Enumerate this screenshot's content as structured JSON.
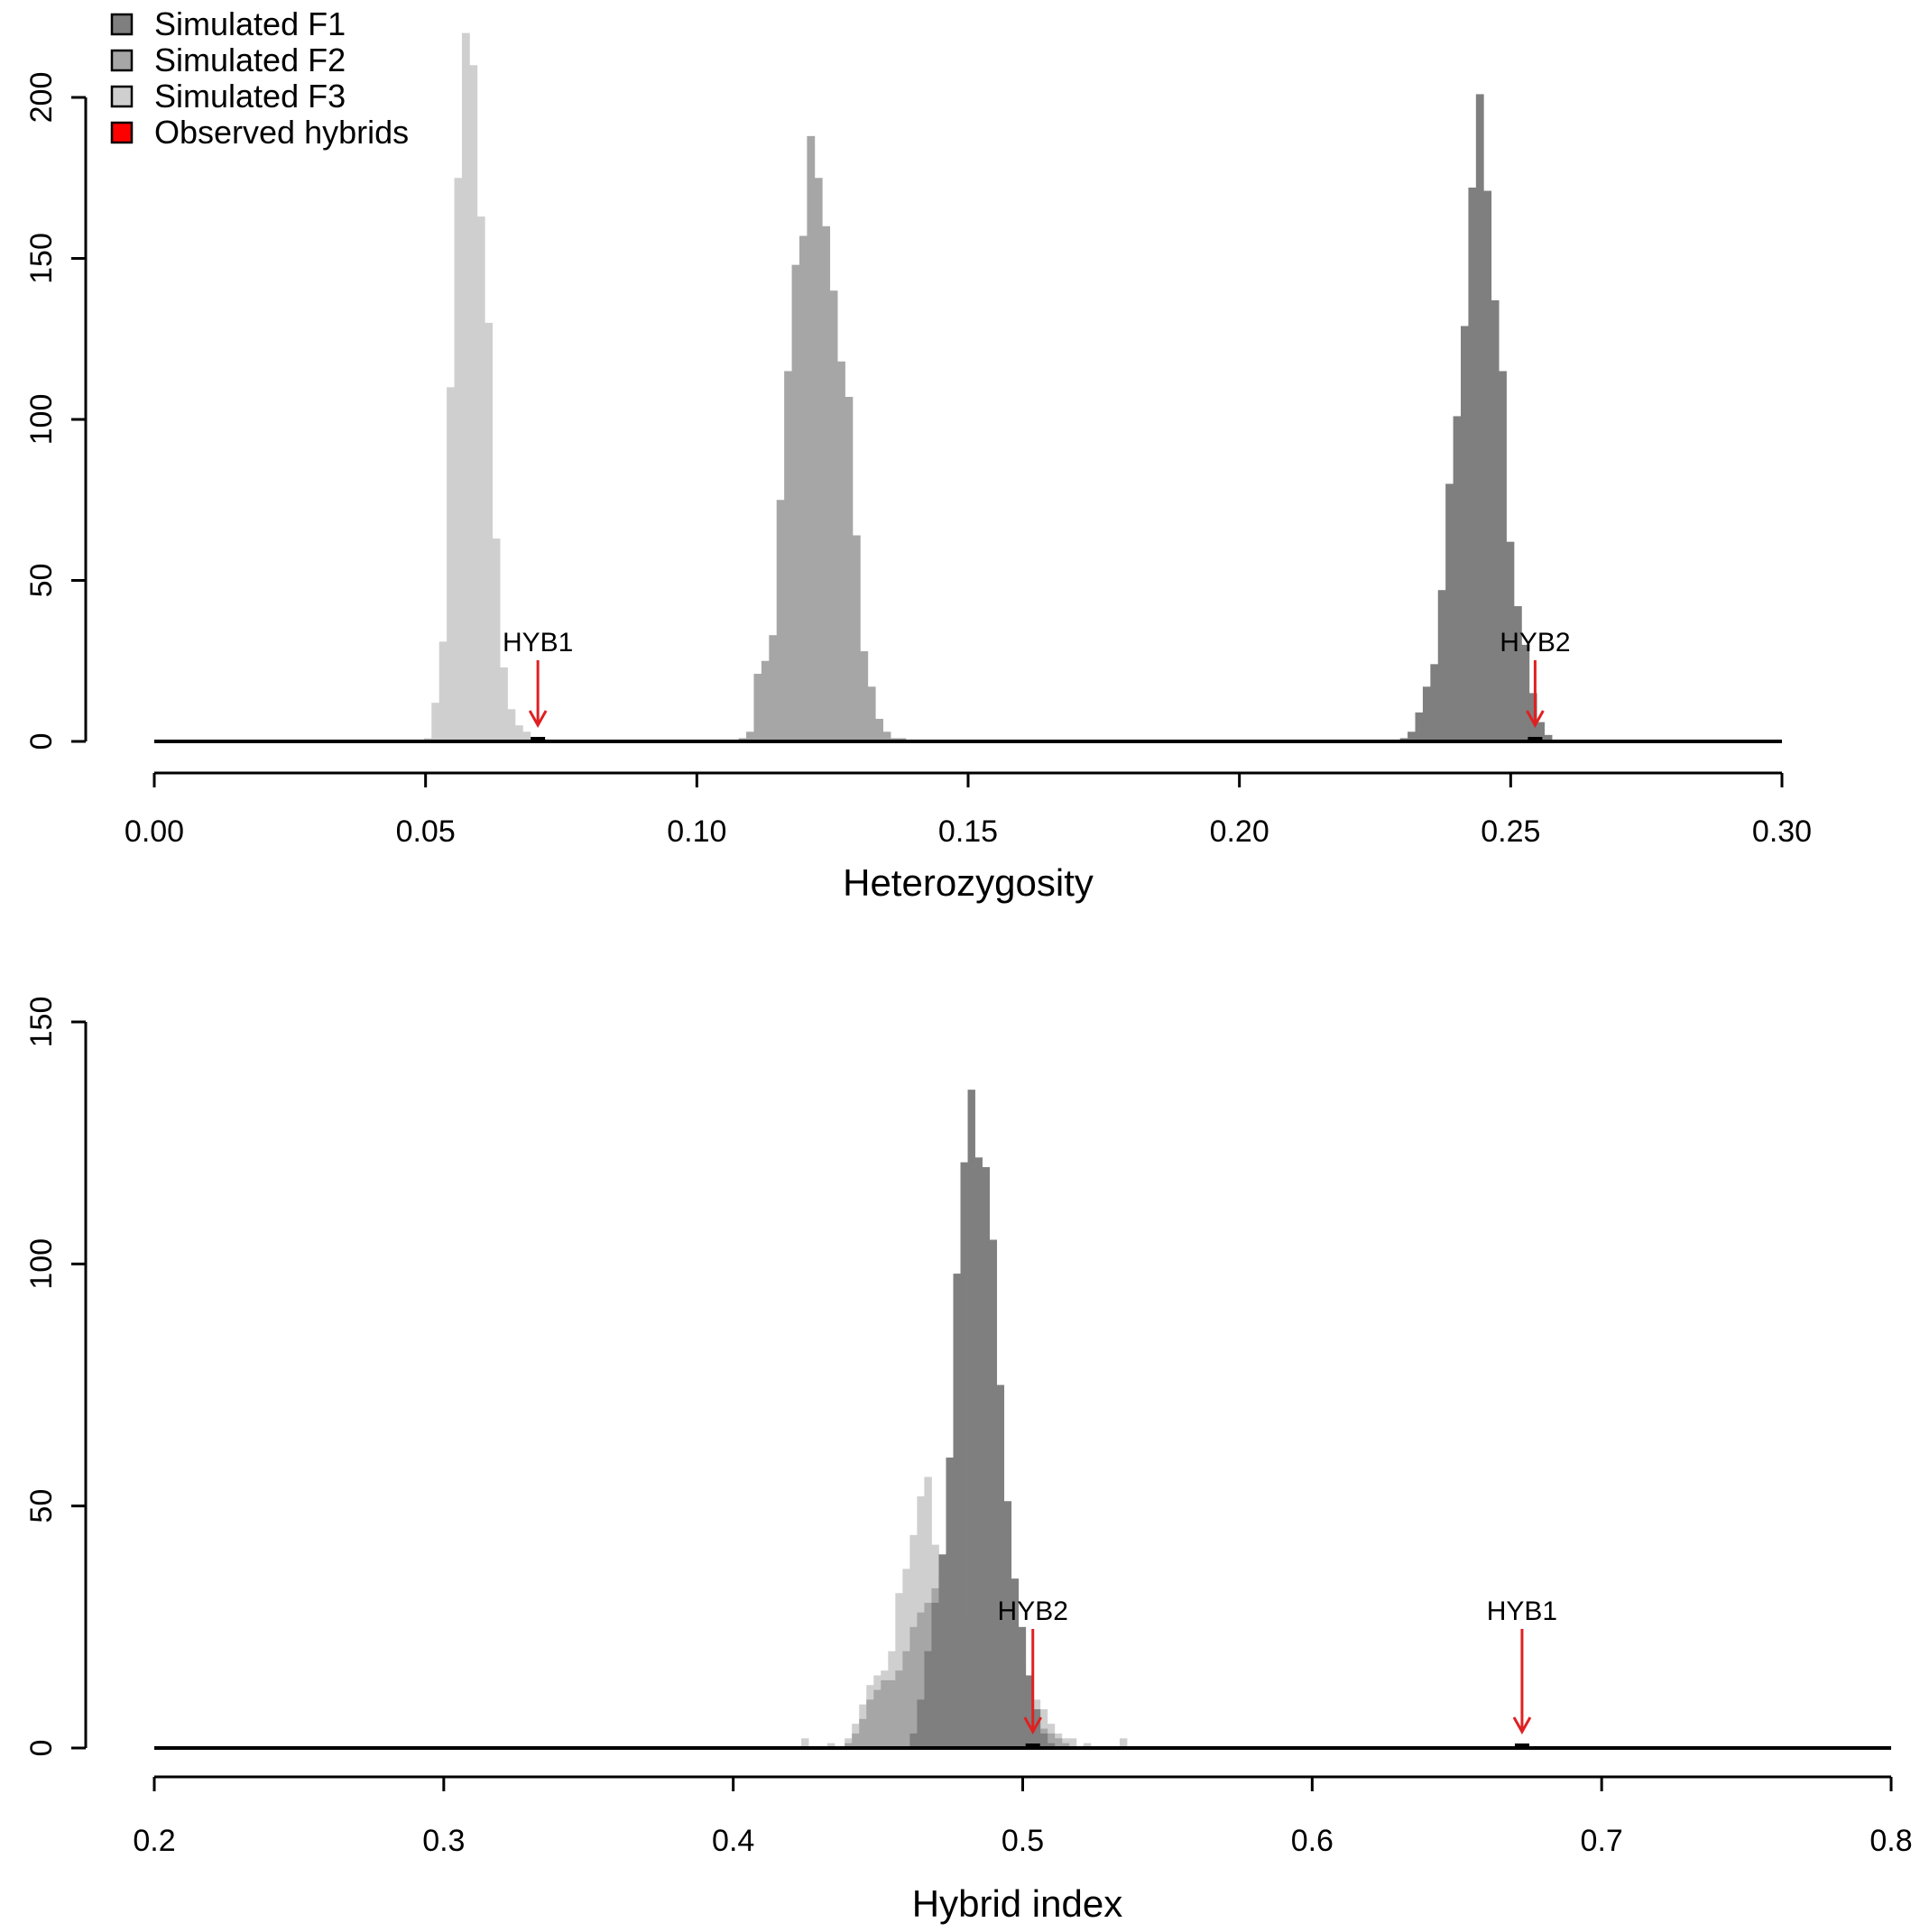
{
  "colors": {
    "f1": "#7f7f7f",
    "f2": "#a6a6a6",
    "f3": "#cfcfcf",
    "observed": "#ff0000",
    "arrow": "#e02020",
    "axis": "#000000"
  },
  "legend": {
    "items": [
      {
        "label": "Simulated F1",
        "color_key": "f1"
      },
      {
        "label": "Simulated F2",
        "color_key": "f2"
      },
      {
        "label": "Simulated F3",
        "color_key": "f3"
      },
      {
        "label": "Observed hybrids",
        "color_key": "observed"
      }
    ]
  },
  "chart_data": [
    {
      "type": "histogram",
      "xlabel": "Heterozygosity",
      "ylabel": "",
      "xlim": [
        0.0,
        0.3
      ],
      "ylim": [
        0,
        200
      ],
      "x_ticks": [
        0.0,
        0.05,
        0.1,
        0.15,
        0.2,
        0.25,
        0.3
      ],
      "x_tick_labels": [
        "0.00",
        "0.05",
        "0.10",
        "0.15",
        "0.20",
        "0.25",
        "0.30"
      ],
      "y_ticks": [
        0,
        50,
        100,
        150,
        200
      ],
      "y_tick_labels": [
        "0",
        "50",
        "100",
        "150",
        "200"
      ],
      "bin_width": 0.0014,
      "series": [
        {
          "name": "Simulated F3",
          "color_key": "f3",
          "bins": [
            [
              0.0497,
              1
            ],
            [
              0.0511,
              12
            ],
            [
              0.0525,
              31
            ],
            [
              0.0539,
              110
            ],
            [
              0.0553,
              175
            ],
            [
              0.0567,
              220
            ],
            [
              0.0581,
              210
            ],
            [
              0.0595,
              163
            ],
            [
              0.0609,
              130
            ],
            [
              0.0623,
              63
            ],
            [
              0.0637,
              23
            ],
            [
              0.0651,
              10
            ],
            [
              0.0665,
              5
            ],
            [
              0.0679,
              3
            ],
            [
              0.0693,
              1
            ]
          ]
        },
        {
          "name": "Simulated F2",
          "color_key": "f2",
          "bins": [
            [
              0.1077,
              1
            ],
            [
              0.1091,
              3
            ],
            [
              0.1105,
              21
            ],
            [
              0.1119,
              25
            ],
            [
              0.1133,
              33
            ],
            [
              0.1147,
              75
            ],
            [
              0.1161,
              115
            ],
            [
              0.1175,
              148
            ],
            [
              0.1189,
              157
            ],
            [
              0.1203,
              188
            ],
            [
              0.1217,
              175
            ],
            [
              0.1231,
              160
            ],
            [
              0.1245,
              140
            ],
            [
              0.1259,
              118
            ],
            [
              0.1273,
              107
            ],
            [
              0.1287,
              64
            ],
            [
              0.1301,
              28
            ],
            [
              0.1315,
              17
            ],
            [
              0.1329,
              7
            ],
            [
              0.1343,
              3
            ],
            [
              0.1357,
              1
            ],
            [
              0.1371,
              1
            ]
          ]
        },
        {
          "name": "Simulated F1",
          "color_key": "f1",
          "bins": [
            [
              0.2296,
              1
            ],
            [
              0.231,
              3
            ],
            [
              0.2324,
              9
            ],
            [
              0.2338,
              17
            ],
            [
              0.2352,
              24
            ],
            [
              0.2366,
              47
            ],
            [
              0.238,
              80
            ],
            [
              0.2394,
              101
            ],
            [
              0.2408,
              129
            ],
            [
              0.2422,
              172
            ],
            [
              0.2436,
              201
            ],
            [
              0.245,
              171
            ],
            [
              0.2464,
              137
            ],
            [
              0.2478,
              115
            ],
            [
              0.2492,
              62
            ],
            [
              0.2506,
              42
            ],
            [
              0.252,
              30
            ],
            [
              0.2534,
              15
            ],
            [
              0.2548,
              6
            ],
            [
              0.2562,
              2
            ]
          ]
        }
      ],
      "observed": [
        {
          "label": "HYB1",
          "x": 0.0707,
          "y": 1
        },
        {
          "label": "HYB2",
          "x": 0.2545,
          "y": 1
        }
      ]
    },
    {
      "type": "histogram",
      "xlabel": "Hybrid index",
      "ylabel": "",
      "xlim": [
        0.2,
        0.8
      ],
      "ylim": [
        0,
        150
      ],
      "x_ticks": [
        0.2,
        0.3,
        0.4,
        0.5,
        0.6,
        0.7,
        0.8
      ],
      "x_tick_labels": [
        "0.2",
        "0.3",
        "0.4",
        "0.5",
        "0.6",
        "0.7",
        "0.8"
      ],
      "y_ticks": [
        0,
        50,
        100,
        150
      ],
      "y_tick_labels": [
        "0",
        "50",
        "100",
        "150"
      ],
      "bin_width": 0.0025,
      "series": [
        {
          "name": "Simulated F3",
          "color_key": "f3",
          "bins": [
            [
              0.4235,
              2
            ],
            [
              0.4325,
              1
            ],
            [
              0.4385,
              2
            ],
            [
              0.441,
              5
            ],
            [
              0.4435,
              9
            ],
            [
              0.446,
              13
            ],
            [
              0.4485,
              15
            ],
            [
              0.451,
              16
            ],
            [
              0.4535,
              20
            ],
            [
              0.456,
              32
            ],
            [
              0.4585,
              37
            ],
            [
              0.461,
              44
            ],
            [
              0.4635,
              52
            ],
            [
              0.466,
              56
            ],
            [
              0.4685,
              42
            ],
            [
              0.471,
              35
            ],
            [
              0.4735,
              30
            ],
            [
              0.476,
              22
            ],
            [
              0.4785,
              18
            ],
            [
              0.481,
              24
            ],
            [
              0.4835,
              24
            ],
            [
              0.486,
              25
            ],
            [
              0.4885,
              26
            ],
            [
              0.491,
              30
            ],
            [
              0.4935,
              30
            ],
            [
              0.496,
              25
            ],
            [
              0.4985,
              18
            ],
            [
              0.501,
              14
            ],
            [
              0.5035,
              10
            ],
            [
              0.506,
              8
            ],
            [
              0.5085,
              5
            ],
            [
              0.511,
              3
            ],
            [
              0.5135,
              2
            ],
            [
              0.516,
              2
            ],
            [
              0.521,
              1
            ],
            [
              0.5335,
              2
            ]
          ]
        },
        {
          "name": "Simulated F2",
          "color_key": "f2",
          "bins": [
            [
              0.4385,
              1
            ],
            [
              0.441,
              3
            ],
            [
              0.4435,
              6
            ],
            [
              0.446,
              10
            ],
            [
              0.4485,
              12
            ],
            [
              0.451,
              14
            ],
            [
              0.4535,
              14
            ],
            [
              0.456,
              16
            ],
            [
              0.4585,
              20
            ],
            [
              0.461,
              25
            ],
            [
              0.4635,
              28
            ],
            [
              0.466,
              30
            ],
            [
              0.4685,
              33
            ],
            [
              0.471,
              30
            ],
            [
              0.4735,
              28
            ],
            [
              0.476,
              26
            ],
            [
              0.4785,
              24
            ],
            [
              0.481,
              26
            ],
            [
              0.4835,
              30
            ],
            [
              0.486,
              33
            ],
            [
              0.4885,
              30
            ],
            [
              0.491,
              26
            ],
            [
              0.4935,
              20
            ],
            [
              0.496,
              18
            ],
            [
              0.4985,
              12
            ],
            [
              0.501,
              8
            ],
            [
              0.5035,
              6
            ],
            [
              0.506,
              4
            ],
            [
              0.5085,
              3
            ],
            [
              0.511,
              2
            ],
            [
              0.5135,
              1
            ]
          ]
        },
        {
          "name": "Simulated F1",
          "color_key": "f1",
          "bins": [
            [
              0.461,
              3
            ],
            [
              0.4635,
              10
            ],
            [
              0.466,
              20
            ],
            [
              0.4685,
              30
            ],
            [
              0.471,
              40
            ],
            [
              0.4735,
              60
            ],
            [
              0.476,
              98
            ],
            [
              0.4785,
              121
            ],
            [
              0.481,
              136
            ],
            [
              0.4835,
              122
            ],
            [
              0.486,
              120
            ],
            [
              0.4885,
              105
            ],
            [
              0.491,
              75
            ],
            [
              0.4935,
              51
            ],
            [
              0.496,
              35
            ],
            [
              0.4985,
              25
            ],
            [
              0.501,
              15
            ],
            [
              0.5035,
              8
            ],
            [
              0.506,
              3
            ],
            [
              0.5085,
              1
            ]
          ]
        }
      ],
      "observed": [
        {
          "label": "HYB2",
          "x": 0.5035,
          "y": 1
        },
        {
          "label": "HYB1",
          "x": 0.6725,
          "y": 1
        }
      ]
    }
  ]
}
